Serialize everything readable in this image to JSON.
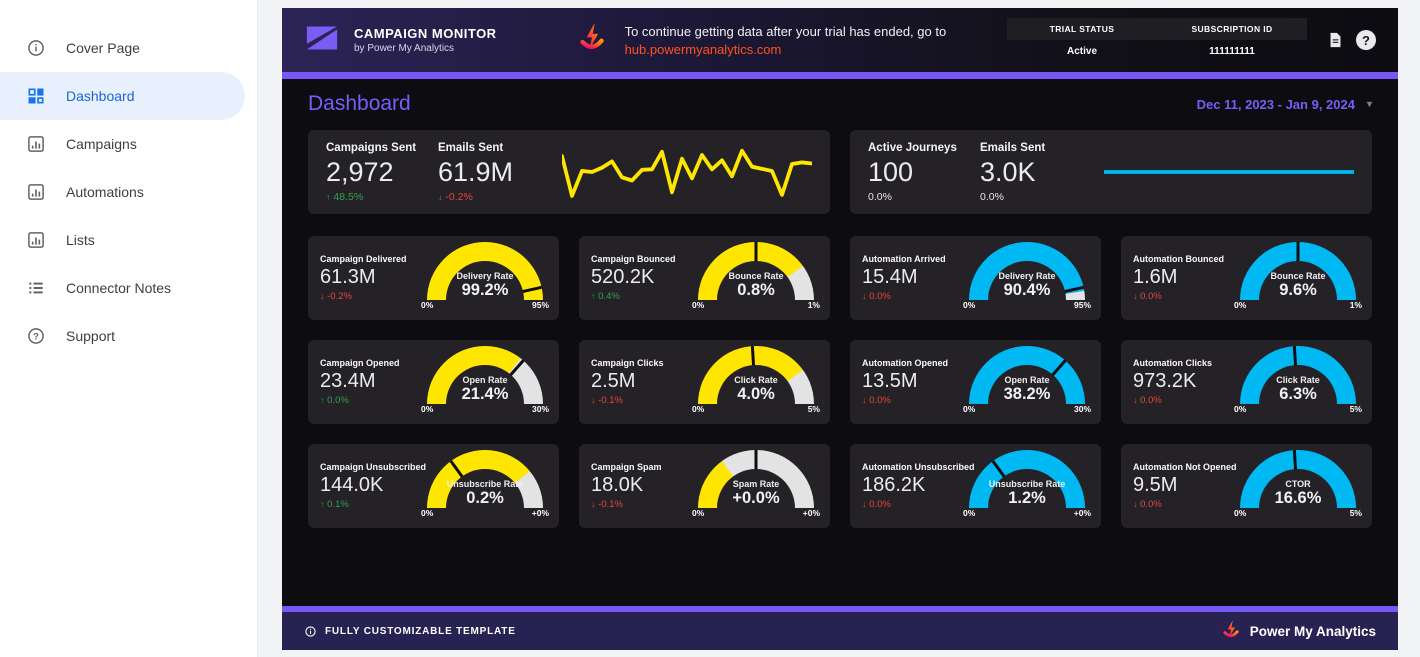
{
  "sidebar": {
    "items": [
      {
        "label": "Cover Page",
        "icon": "info",
        "active": false
      },
      {
        "label": "Dashboard",
        "icon": "dashboard",
        "active": true
      },
      {
        "label": "Campaigns",
        "icon": "chart",
        "active": false
      },
      {
        "label": "Automations",
        "icon": "chart",
        "active": false
      },
      {
        "label": "Lists",
        "icon": "chart",
        "active": false
      },
      {
        "label": "Connector Notes",
        "icon": "list",
        "active": false
      },
      {
        "label": "Support",
        "icon": "help",
        "active": false
      }
    ]
  },
  "header": {
    "brand_title": "CAMPAIGN MONITOR",
    "brand_subtitle": "by Power My Analytics",
    "notice_text": "To continue getting data after your trial has ended, go to",
    "notice_link": "hub.powermyanalytics.com",
    "trial_status_label": "TRIAL STATUS",
    "trial_status_value": "Active",
    "subscription_id_label": "SUBSCRIPTION ID",
    "subscription_id_value": "111111111"
  },
  "toolbar": {
    "page_title": "Dashboard",
    "date_range": "Dec 11, 2023 - Jan 9, 2024"
  },
  "kpi_cards": [
    {
      "metrics": [
        {
          "label": "Campaigns Sent",
          "value": "2,972",
          "arrow": "↑",
          "delta": "48.5%",
          "direction": "up"
        },
        {
          "label": "Emails Sent",
          "value": "61.9M",
          "arrow": "↓",
          "delta": "-0.2%",
          "direction": "down"
        }
      ],
      "sparkline_color": "#ffe600",
      "sparkline": [
        20,
        95,
        48,
        50,
        42,
        30,
        60,
        66,
        46,
        45,
        12,
        88,
        25,
        62,
        18,
        45,
        28,
        58,
        10,
        40,
        44,
        48,
        93,
        35,
        32,
        34
      ]
    },
    {
      "metrics": [
        {
          "label": "Active Journeys",
          "value": "100",
          "arrow": "",
          "delta": "0.0%",
          "direction": "flat"
        },
        {
          "label": "Emails Sent",
          "value": "3.0K",
          "arrow": "",
          "delta": "0.0%",
          "direction": "flat"
        }
      ],
      "sparkline_color": "#00b9f2",
      "sparkline": [
        50,
        50
      ]
    }
  ],
  "gauges": [
    {
      "title": "Campaign Delivered",
      "value": "61.3M",
      "arrow": "↓",
      "delta": "-0.2%",
      "direction": "down",
      "rate_label": "Delivery Rate",
      "rate_value": "99.2%",
      "min": "0%",
      "max": "95%",
      "color": "#ffe600",
      "fill": 1.0,
      "tick": 0.93
    },
    {
      "title": "Campaign Bounced",
      "value": "520.2K",
      "arrow": "↑",
      "delta": "0.4%",
      "direction": "up",
      "rate_label": "Bounce Rate",
      "rate_value": "0.8%",
      "min": "0%",
      "max": "1%",
      "color": "#ffe600",
      "fill": 0.8,
      "tick": 0.5
    },
    {
      "title": "Automation Arrived",
      "value": "15.4M",
      "arrow": "↓",
      "delta": "0.0%",
      "direction": "down",
      "rate_label": "Delivery Rate",
      "rate_value": "90.4%",
      "min": "0%",
      "max": "95%",
      "color": "#00b9f2",
      "fill": 0.95,
      "tick": 0.93
    },
    {
      "title": "Automation Bounced",
      "value": "1.6M",
      "arrow": "↓",
      "delta": "0.0%",
      "direction": "down",
      "rate_label": "Bounce Rate",
      "rate_value": "9.6%",
      "min": "0%",
      "max": "1%",
      "color": "#00b9f2",
      "fill": 1.0,
      "tick": 0.5
    },
    {
      "title": "Campaign Opened",
      "value": "23.4M",
      "arrow": "↑",
      "delta": "0.0%",
      "direction": "up",
      "rate_label": "Open Rate",
      "rate_value": "21.4%",
      "min": "0%",
      "max": "30%",
      "color": "#ffe600",
      "fill": 0.71,
      "tick": 0.73
    },
    {
      "title": "Campaign Clicks",
      "value": "2.5M",
      "arrow": "↓",
      "delta": "-0.1%",
      "direction": "down",
      "rate_label": "Click Rate",
      "rate_value": "4.0%",
      "min": "0%",
      "max": "5%",
      "color": "#ffe600",
      "fill": 0.8,
      "tick": 0.48
    },
    {
      "title": "Automation Opened",
      "value": "13.5M",
      "arrow": "↓",
      "delta": "0.0%",
      "direction": "down",
      "rate_label": "Open Rate",
      "rate_value": "38.2%",
      "min": "0%",
      "max": "30%",
      "color": "#00b9f2",
      "fill": 1.0,
      "tick": 0.73
    },
    {
      "title": "Automation Clicks",
      "value": "973.2K",
      "arrow": "↓",
      "delta": "0.0%",
      "direction": "down",
      "rate_label": "Click Rate",
      "rate_value": "6.3%",
      "min": "0%",
      "max": "5%",
      "color": "#00b9f2",
      "fill": 1.0,
      "tick": 0.48
    },
    {
      "title": "Campaign Unsubscribed",
      "value": "144.0K",
      "arrow": "↑",
      "delta": "0.1%",
      "direction": "up",
      "rate_label": "Unsubscribe Rate",
      "rate_value": "0.2%",
      "min": "0%",
      "max": "+0%",
      "color": "#ffe600",
      "fill": 0.78,
      "tick": 0.3
    },
    {
      "title": "Campaign Spam",
      "value": "18.0K",
      "arrow": "↓",
      "delta": "-0.1%",
      "direction": "down",
      "rate_label": "Spam Rate",
      "rate_value": "+0.0%",
      "min": "0%",
      "max": "+0%",
      "color": "#ffe600",
      "fill": 0.3,
      "tick": 0.5
    },
    {
      "title": "Automation Unsubscribed",
      "value": "186.2K",
      "arrow": "↓",
      "delta": "0.0%",
      "direction": "down",
      "rate_label": "Unsubscribe Rate",
      "rate_value": "1.2%",
      "min": "0%",
      "max": "+0%",
      "color": "#00b9f2",
      "fill": 1.0,
      "tick": 0.3
    },
    {
      "title": "Automation Not Opened",
      "value": "9.5M",
      "arrow": "↓",
      "delta": "0.0%",
      "direction": "down",
      "rate_label": "CTOR",
      "rate_value": "16.6%",
      "min": "0%",
      "max": "5%",
      "color": "#00b9f2",
      "fill": 1.0,
      "tick": 0.48
    }
  ],
  "footer": {
    "left_text": "FULLY CUSTOMIZABLE TEMPLATE",
    "brand": "Power My Analytics"
  },
  "colors": {
    "accent_purple": "#7857f7",
    "title_purple": "#7a5cf8",
    "gauge_yellow": "#ffe600",
    "gauge_cyan": "#00b9f2",
    "delta_up": "#2da44e",
    "delta_down": "#e8473a",
    "link_orange": "#ff531f"
  }
}
